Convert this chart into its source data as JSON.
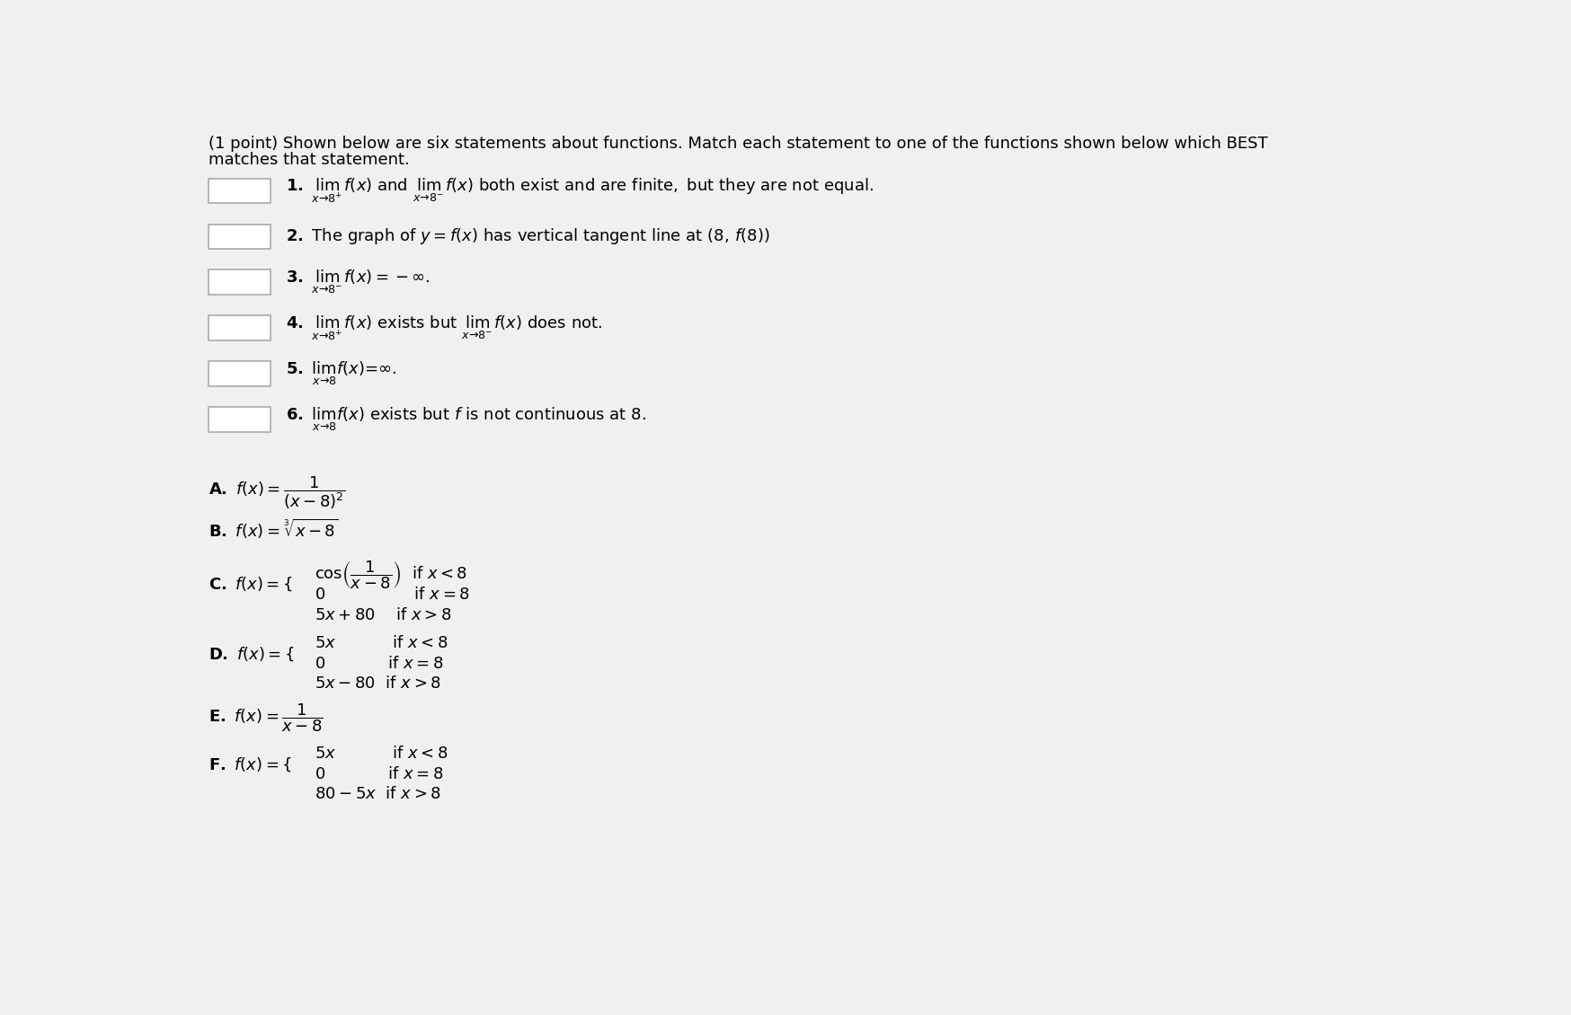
{
  "background_color": "#f0f0f0",
  "title_line1": "(1 point) Shown below are six statements about functions. Match each statement to one of the functions shown below which BEST",
  "title_line2": "matches that statement.",
  "box_color": "white",
  "text_color": "black",
  "fs_title": 13,
  "fs_body": 13,
  "fs_func": 13
}
